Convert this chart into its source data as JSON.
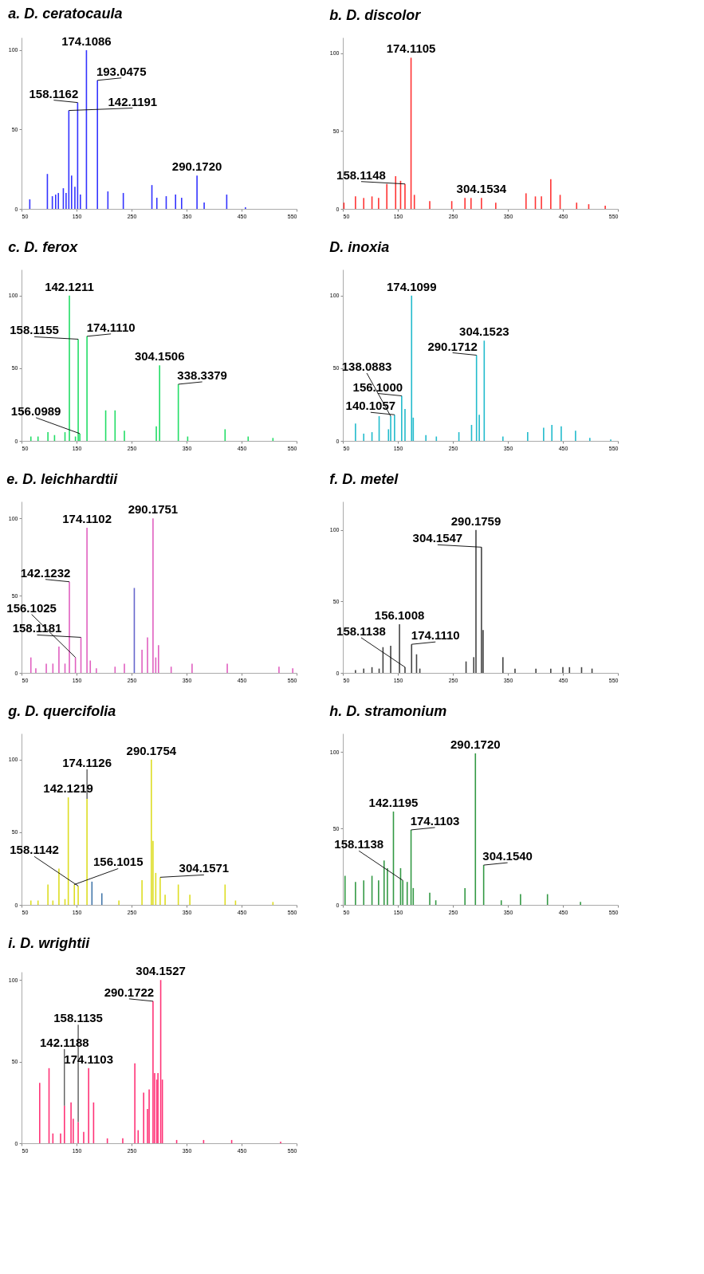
{
  "chart_data": [
    {
      "type": "bar",
      "title": "a.  D. ceratocaula",
      "xlim": [
        50,
        550
      ],
      "xticks": [
        50,
        150,
        250,
        350,
        450,
        550
      ],
      "ylim": [
        0,
        108
      ],
      "yticks": [
        0,
        50,
        100
      ],
      "series": [
        {
          "color": "#3333ff",
          "x": [
            65,
            97,
            106,
            112,
            117,
            126,
            131,
            136,
            141,
            147,
            152,
            157,
            168,
            188,
            207,
            235,
            287,
            296,
            313,
            330,
            341,
            369,
            382,
            423,
            457
          ],
          "values": [
            6,
            22,
            8,
            9,
            10,
            13,
            10,
            62,
            21,
            14,
            67,
            9,
            100,
            81,
            11,
            10,
            15,
            7,
            8,
            9,
            7,
            21,
            4,
            9,
            1
          ]
        }
      ],
      "annotations": [
        {
          "text": "174.1086",
          "x": 168,
          "y": 100
        },
        {
          "text": "193.0475",
          "x": 188,
          "y": 81
        },
        {
          "text": "158.1162",
          "x": 152,
          "y": 67
        },
        {
          "text": "142.1191",
          "x": 136,
          "y": 62
        },
        {
          "text": "290.1720",
          "x": 369,
          "y": 21
        }
      ]
    },
    {
      "type": "bar",
      "title": "b.  D. discolor",
      "xlim": [
        50,
        550
      ],
      "xticks": [
        50,
        150,
        250,
        350,
        450,
        550
      ],
      "ylim": [
        0,
        110
      ],
      "yticks": [
        0,
        50,
        100
      ],
      "series": [
        {
          "color": "#ff3333",
          "x": [
            52,
            73,
            88,
            103,
            115,
            130,
            146,
            155,
            163,
            174,
            180,
            208,
            248,
            272,
            283,
            302,
            328,
            383,
            400,
            411,
            428,
            445,
            475,
            497,
            527
          ],
          "values": [
            4,
            8,
            7,
            8,
            7,
            16,
            21,
            18,
            16,
            97,
            9,
            5,
            5,
            7,
            7,
            7,
            4,
            10,
            8,
            8,
            19,
            9,
            4,
            3,
            2
          ]
        }
      ],
      "annotations": [
        {
          "text": "174.1105",
          "x": 174,
          "y": 97
        },
        {
          "text": "158.1148",
          "x": 163,
          "y": 16
        },
        {
          "text": "304.1534",
          "x": 302,
          "y": 7
        }
      ]
    },
    {
      "type": "bar",
      "title": "c.  D. ferox",
      "xlim": [
        50,
        550
      ],
      "xticks": [
        50,
        150,
        250,
        350,
        450,
        550
      ],
      "ylim": [
        0,
        118
      ],
      "yticks": [
        0,
        50,
        100
      ],
      "series": [
        {
          "color": "#22dd66",
          "x": [
            67,
            80,
            98,
            110,
            129,
            137,
            148,
            153,
            156,
            169,
            203,
            220,
            237,
            295,
            301,
            335,
            352,
            420,
            462,
            507
          ],
          "values": [
            3,
            3,
            6,
            4,
            6,
            100,
            3,
            70,
            5,
            72,
            21,
            21,
            7,
            10,
            52,
            39,
            3,
            8,
            3,
            2
          ]
        }
      ],
      "annotations": [
        {
          "text": "142.1211",
          "x": 137,
          "y": 100
        },
        {
          "text": "158.1155",
          "x": 153,
          "y": 70
        },
        {
          "text": "174.1110",
          "x": 169,
          "y": 72
        },
        {
          "text": "304.1506",
          "x": 301,
          "y": 52
        },
        {
          "text": "338.3379",
          "x": 335,
          "y": 39
        },
        {
          "text": "156.0989",
          "x": 156,
          "y": 5
        }
      ]
    },
    {
      "type": "bar",
      "title": "D. inoxia",
      "xlim": [
        50,
        550
      ],
      "xticks": [
        50,
        150,
        250,
        350,
        450,
        550
      ],
      "ylim": [
        0,
        118
      ],
      "yticks": [
        0,
        50,
        100
      ],
      "series": [
        {
          "color": "#22bbcc",
          "x": [
            73,
            88,
            103,
            116,
            133,
            137,
            144,
            157,
            163,
            175,
            178,
            201,
            220,
            261,
            284,
            293,
            298,
            307,
            341,
            386,
            415,
            430,
            447,
            473,
            499,
            537
          ],
          "values": [
            12,
            5,
            6,
            17,
            8,
            17,
            18,
            31,
            22,
            100,
            16,
            4,
            3,
            6,
            11,
            59,
            18,
            69,
            3,
            6,
            9,
            11,
            10,
            7,
            2,
            1
          ]
        }
      ],
      "annotations": [
        {
          "text": "174.1099",
          "x": 175,
          "y": 100
        },
        {
          "text": "304.1523",
          "x": 307,
          "y": 69
        },
        {
          "text": "290.1712",
          "x": 293,
          "y": 59
        },
        {
          "text": "156.1000",
          "x": 157,
          "y": 31
        },
        {
          "text": "140.1057",
          "x": 144,
          "y": 18
        },
        {
          "text": "138.0883",
          "x": 137,
          "y": 17
        }
      ]
    },
    {
      "type": "bar",
      "title": "e.  D. leichhardtii",
      "xlim": [
        50,
        550
      ],
      "xticks": [
        50,
        150,
        250,
        350,
        450,
        550
      ],
      "ylim": [
        0,
        111
      ],
      "yticks": [
        0,
        50,
        100
      ],
      "series": [
        {
          "color": "#e060c0",
          "x": [
            67,
            76,
            95,
            107,
            118,
            129,
            137,
            148,
            158,
            169,
            175,
            186,
            220,
            237,
            269,
            279,
            289,
            294,
            299,
            322,
            360,
            424,
            518,
            543
          ],
          "values": [
            10,
            3,
            6,
            6,
            17,
            6,
            59,
            10,
            23,
            94,
            8,
            3,
            4,
            6,
            15,
            23,
            100,
            10,
            18,
            4,
            6,
            6,
            4,
            3
          ]
        },
        {
          "color": "#6666cc",
          "x": [
            255
          ],
          "values": [
            55
          ]
        }
      ],
      "annotations": [
        {
          "text": "290.1751",
          "x": 289,
          "y": 100
        },
        {
          "text": "174.1102",
          "x": 169,
          "y": 94
        },
        {
          "text": "142.1232",
          "x": 137,
          "y": 59
        },
        {
          "text": "158.1181",
          "x": 158,
          "y": 23
        },
        {
          "text": "156.1025",
          "x": 148,
          "y": 10
        }
      ]
    },
    {
      "type": "bar",
      "title": "f.  D. metel",
      "xlim": [
        50,
        550
      ],
      "xticks": [
        50,
        150,
        250,
        350,
        450,
        550
      ],
      "ylim": [
        0,
        120
      ],
      "yticks": [
        0,
        50,
        100
      ],
      "series": [
        {
          "color": "#444444",
          "x": [
            73,
            88,
            103,
            116,
            123,
            137,
            153,
            163,
            175,
            184,
            190,
            274,
            288,
            292,
            302,
            305,
            341,
            363,
            401,
            428,
            450,
            462,
            484,
            503
          ],
          "values": [
            2,
            3,
            4,
            3,
            18,
            19,
            34,
            4,
            20,
            13,
            3,
            8,
            11,
            100,
            88,
            30,
            11,
            3,
            3,
            3,
            4,
            4,
            4,
            3
          ]
        }
      ],
      "annotations": [
        {
          "text": "290.1759",
          "x": 292,
          "y": 100
        },
        {
          "text": "304.1547",
          "x": 302,
          "y": 88
        },
        {
          "text": "156.1008",
          "x": 153,
          "y": 34
        },
        {
          "text": "174.1110",
          "x": 175,
          "y": 20
        },
        {
          "text": "158.1138",
          "x": 163,
          "y": 4
        }
      ]
    },
    {
      "type": "bar",
      "title": "g.  D. quercifolia",
      "xlim": [
        50,
        550
      ],
      "xticks": [
        50,
        150,
        250,
        350,
        450,
        550
      ],
      "ylim": [
        0,
        118
      ],
      "yticks": [
        0,
        50,
        100
      ],
      "series": [
        {
          "color": "#dddd22",
          "x": [
            67,
            80,
            98,
            107,
            118,
            129,
            135,
            146,
            153,
            169,
            227,
            269,
            286,
            289,
            294,
            302,
            311,
            335,
            356,
            420,
            439,
            507
          ],
          "values": [
            3,
            3,
            14,
            3,
            25,
            4,
            74,
            14,
            13,
            73,
            3,
            17,
            100,
            44,
            22,
            19,
            7,
            14,
            7,
            14,
            3,
            2
          ]
        },
        {
          "color": "#4477aa",
          "x": [
            178,
            196
          ],
          "values": [
            16,
            8
          ]
        }
      ],
      "annotations": [
        {
          "text": "290.1754",
          "x": 286,
          "y": 100
        },
        {
          "text": "142.1219",
          "x": 135,
          "y": 74
        },
        {
          "text": "174.1126",
          "x": 169,
          "y": 73
        },
        {
          "text": "304.1571",
          "x": 302,
          "y": 19
        },
        {
          "text": "156.1015",
          "x": 146,
          "y": 14
        },
        {
          "text": "158.1142",
          "x": 153,
          "y": 13
        }
      ]
    },
    {
      "type": "bar",
      "title": "h.  D. stramonium",
      "xlim": [
        50,
        550
      ],
      "xticks": [
        50,
        150,
        250,
        350,
        450,
        550
      ],
      "ylim": [
        0,
        112
      ],
      "yticks": [
        0,
        50,
        100
      ],
      "series": [
        {
          "color": "#339944",
          "x": [
            54,
            73,
            88,
            103,
            115,
            125,
            131,
            142,
            155,
            159,
            167,
            174,
            178,
            208,
            219,
            272,
            291,
            306,
            338,
            373,
            422,
            482
          ],
          "values": [
            19,
            15,
            16,
            19,
            16,
            29,
            24,
            61,
            24,
            16,
            15,
            49,
            11,
            8,
            3,
            11,
            99,
            26,
            3,
            7,
            7,
            2
          ]
        }
      ],
      "annotations": [
        {
          "text": "290.1720",
          "x": 291,
          "y": 99
        },
        {
          "text": "142.1195",
          "x": 142,
          "y": 61
        },
        {
          "text": "174.1103",
          "x": 174,
          "y": 49
        },
        {
          "text": "304.1540",
          "x": 306,
          "y": 26
        },
        {
          "text": "158.1138",
          "x": 159,
          "y": 16
        }
      ]
    },
    {
      "type": "bar",
      "title": "i.  D. wrightii",
      "xlim": [
        50,
        550
      ],
      "xticks": [
        50,
        150,
        250,
        350,
        450,
        550
      ],
      "ylim": [
        0,
        105
      ],
      "yticks": [
        0,
        50,
        100
      ],
      "series": [
        {
          "color": "#ff3377",
          "x": [
            83,
            100,
            107,
            121,
            128,
            140,
            144,
            153,
            163,
            172,
            181,
            206,
            234,
            256,
            262,
            272,
            279,
            282,
            289,
            292,
            296,
            298,
            303,
            306,
            332,
            381,
            432,
            521
          ],
          "values": [
            37,
            46,
            6,
            6,
            23,
            25,
            15,
            13,
            7,
            46,
            25,
            3,
            3,
            49,
            8,
            31,
            21,
            33,
            87,
            43,
            39,
            43,
            100,
            39,
            2,
            2,
            2,
            1
          ]
        }
      ],
      "annotations": [
        {
          "text": "304.1527",
          "x": 303,
          "y": 100
        },
        {
          "text": "290.1722",
          "x": 289,
          "y": 87
        },
        {
          "text": "174.1103",
          "x": 172,
          "y": 46
        },
        {
          "text": "142.1188",
          "x": 128,
          "y": 23
        },
        {
          "text": "158.1135",
          "x": 153,
          "y": 13
        }
      ]
    }
  ]
}
